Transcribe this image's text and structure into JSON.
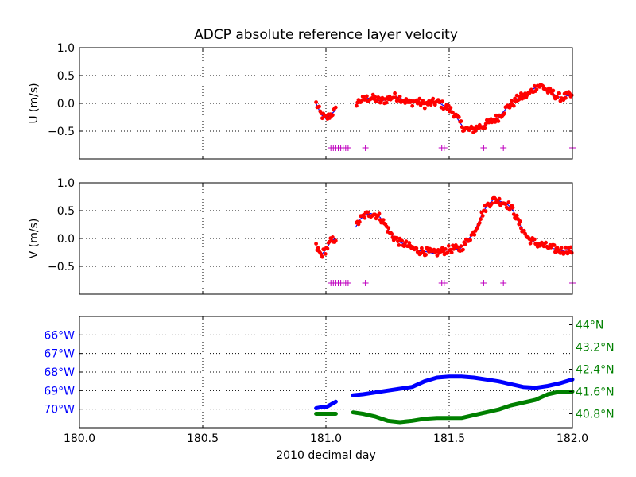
{
  "chart_data": [
    {
      "type": "scatter",
      "title": "ADCP absolute reference layer velocity",
      "ylabel": "U (m/s)",
      "xlim": [
        180.0,
        182.0
      ],
      "ylim": [
        -1.0,
        1.0
      ],
      "yticks": [
        "1.0",
        "0.5",
        "0.0",
        "−0.5"
      ],
      "ytick_values": [
        1.0,
        0.5,
        0.0,
        -0.5
      ],
      "grid": true,
      "colors": {
        "points": "#ff0000",
        "line": "#0000ff",
        "flags": "#bf00bf"
      },
      "line_x": [
        180.96,
        180.98,
        181.0,
        181.02,
        181.04,
        181.06,
        181.08,
        181.1,
        181.12,
        181.14,
        181.16,
        181.18,
        181.2,
        181.22,
        181.24,
        181.26,
        181.28,
        181.3,
        181.32,
        181.34,
        181.36,
        181.38,
        181.4,
        181.42,
        181.44,
        181.46,
        181.48,
        181.5,
        181.52,
        181.54,
        181.56,
        181.58,
        181.6,
        181.62,
        181.64,
        181.66,
        181.68,
        181.7,
        181.72,
        181.74,
        181.76,
        181.78,
        181.8,
        181.82,
        181.84,
        181.86,
        181.88,
        181.9,
        181.92,
        181.94,
        181.96,
        181.98,
        182.0
      ],
      "line_y": [
        0.0,
        -0.2,
        -0.28,
        -0.2,
        -0.12,
        null,
        null,
        null,
        0.0,
        0.05,
        0.08,
        0.1,
        0.08,
        0.04,
        0.06,
        0.1,
        0.12,
        0.1,
        0.05,
        0.0,
        0.04,
        0.02,
        -0.02,
        0.0,
        0.02,
        0.01,
        -0.05,
        -0.1,
        -0.18,
        -0.32,
        -0.45,
        -0.48,
        -0.47,
        -0.42,
        -0.4,
        -0.35,
        -0.3,
        -0.25,
        -0.15,
        -0.05,
        0.0,
        0.1,
        0.12,
        0.15,
        0.25,
        0.32,
        0.3,
        0.22,
        0.18,
        0.12,
        0.1,
        0.14,
        0.12
      ],
      "flags_x": [
        181.02,
        181.03,
        181.04,
        181.05,
        181.06,
        181.07,
        181.08,
        181.09,
        181.16,
        181.47,
        181.48,
        181.64,
        181.72,
        182.0
      ],
      "flags_y": -0.8
    },
    {
      "type": "scatter",
      "ylabel": "V (m/s)",
      "xlim": [
        180.0,
        182.0
      ],
      "ylim": [
        -1.0,
        1.0
      ],
      "yticks": [
        "1.0",
        "0.5",
        "0.0",
        "−0.5"
      ],
      "ytick_values": [
        1.0,
        0.5,
        0.0,
        -0.5
      ],
      "grid": true,
      "colors": {
        "points": "#ff0000",
        "line": "#0000ff",
        "flags": "#bf00bf"
      },
      "line_x": [
        180.96,
        180.98,
        181.0,
        181.02,
        181.04,
        181.06,
        181.08,
        181.1,
        181.12,
        181.14,
        181.16,
        181.18,
        181.2,
        181.22,
        181.24,
        181.26,
        181.28,
        181.3,
        181.32,
        181.34,
        181.36,
        181.38,
        181.4,
        181.42,
        181.44,
        181.46,
        181.48,
        181.5,
        181.52,
        181.54,
        181.56,
        181.58,
        181.6,
        181.62,
        181.64,
        181.66,
        181.68,
        181.7,
        181.72,
        181.74,
        181.76,
        181.78,
        181.8,
        181.82,
        181.84,
        181.86,
        181.88,
        181.9,
        181.92,
        181.94,
        181.96,
        181.98,
        182.0
      ],
      "line_y": [
        -0.15,
        -0.3,
        -0.2,
        -0.05,
        0.0,
        null,
        null,
        null,
        0.2,
        0.35,
        0.42,
        0.45,
        0.43,
        0.38,
        0.25,
        0.1,
        0.0,
        -0.07,
        -0.1,
        -0.15,
        -0.2,
        -0.22,
        -0.23,
        -0.25,
        -0.27,
        -0.24,
        -0.22,
        -0.2,
        -0.18,
        -0.2,
        -0.12,
        0.0,
        0.1,
        0.3,
        0.5,
        0.62,
        0.7,
        0.68,
        0.65,
        0.6,
        0.5,
        0.3,
        0.15,
        0.0,
        -0.05,
        -0.1,
        -0.12,
        -0.15,
        -0.18,
        -0.2,
        -0.22,
        -0.2,
        -0.22
      ],
      "flags_x": [
        181.02,
        181.03,
        181.04,
        181.05,
        181.06,
        181.07,
        181.08,
        181.09,
        181.16,
        181.47,
        181.48,
        181.64,
        181.72,
        182.0
      ],
      "flags_y": -0.8
    },
    {
      "type": "line",
      "xlabel": "2010 decimal day",
      "xlim": [
        180.0,
        182.0
      ],
      "xticks": [
        "180.0",
        "180.5",
        "181.0",
        "181.5",
        "182.0"
      ],
      "xtick_values": [
        180.0,
        180.5,
        181.0,
        181.5,
        182.0
      ],
      "grid": true,
      "left_axis": {
        "ticks": [
          "66°W",
          "67°W",
          "68°W",
          "69°W",
          "70°W"
        ],
        "tick_values": [
          -66,
          -67,
          -68,
          -69,
          -70
        ],
        "ylim": [
          -71.0,
          -65.0
        ],
        "color": "#0000ff"
      },
      "right_axis": {
        "ticks": [
          "44°N",
          "43.2°N",
          "42.4°N",
          "41.6°N",
          "40.8°N"
        ],
        "tick_values": [
          44.0,
          43.2,
          42.4,
          41.6,
          40.8
        ],
        "ylim": [
          40.3,
          44.3
        ],
        "color": "#008000"
      },
      "series": [
        {
          "axis": "left",
          "color": "#0000ff",
          "x": [
            180.96,
            180.98,
            181.0,
            181.02,
            181.04,
            null,
            181.11,
            181.15,
            181.2,
            181.25,
            181.3,
            181.35,
            181.4,
            181.45,
            181.5,
            181.55,
            181.6,
            181.65,
            181.7,
            181.75,
            181.8,
            181.85,
            181.9,
            181.95,
            182.0
          ],
          "y": [
            -69.95,
            -69.9,
            -69.9,
            -69.75,
            -69.6,
            null,
            -69.25,
            -69.2,
            -69.1,
            -69.0,
            -68.9,
            -68.8,
            -68.5,
            -68.3,
            -68.25,
            -68.25,
            -68.3,
            -68.4,
            -68.5,
            -68.65,
            -68.8,
            -68.85,
            -68.75,
            -68.6,
            -68.4
          ]
        },
        {
          "axis": "right",
          "color": "#008000",
          "x": [
            180.96,
            180.98,
            181.0,
            181.02,
            181.04,
            null,
            181.11,
            181.15,
            181.2,
            181.25,
            181.3,
            181.35,
            181.4,
            181.45,
            181.5,
            181.55,
            181.6,
            181.65,
            181.7,
            181.75,
            181.8,
            181.85,
            181.9,
            181.95,
            182.0
          ],
          "y": [
            40.8,
            40.8,
            40.8,
            40.8,
            40.8,
            null,
            40.85,
            40.8,
            40.7,
            40.55,
            40.5,
            40.55,
            40.62,
            40.65,
            40.65,
            40.65,
            40.75,
            40.85,
            40.95,
            41.1,
            41.2,
            41.3,
            41.5,
            41.6,
            41.6
          ]
        }
      ]
    }
  ]
}
